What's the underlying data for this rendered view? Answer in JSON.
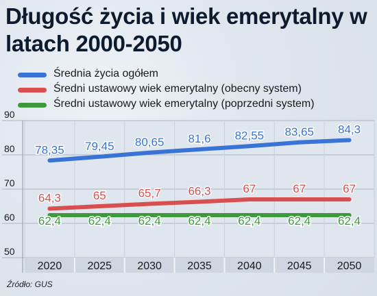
{
  "title": "Długość życia i wiek emerytalny w latach 2000-2050",
  "source": "Źródło: GUS",
  "chart_data": {
    "type": "line",
    "categories": [
      "2020",
      "2025",
      "2030",
      "2035",
      "2040",
      "2045",
      "2050"
    ],
    "series": [
      {
        "name": "Średnia życia ogółem",
        "color": "#3a73d6",
        "values": [
          78.35,
          79.45,
          80.65,
          81.6,
          82.55,
          83.65,
          84.3
        ],
        "labels": [
          "78,35",
          "79,45",
          "80,65",
          "81,6",
          "82,55",
          "83,65",
          "84,3"
        ]
      },
      {
        "name": "Średni ustawowy wiek emerytalny (obecny system)",
        "color": "#d94f4f",
        "values": [
          64.3,
          65,
          65.7,
          66.3,
          67,
          67,
          67
        ],
        "labels": [
          "64,3",
          "65",
          "65,7",
          "66,3",
          "67",
          "67",
          "67"
        ]
      },
      {
        "name": "Średni ustawowy wiek emerytalny (poprzedni system)",
        "color": "#3c9a3a",
        "values": [
          62.4,
          62.4,
          62.4,
          62.4,
          62.4,
          62.4,
          62.4
        ],
        "labels": [
          "62,4",
          "62,4",
          "62,4",
          "62,4",
          "62,4",
          "62,4",
          "62,4"
        ]
      }
    ],
    "ylim": [
      50,
      90
    ],
    "yticks": [
      "50",
      "60",
      "70",
      "80",
      "90"
    ],
    "grid": true,
    "legend": "top-left",
    "xlabel": "",
    "ylabel": ""
  }
}
